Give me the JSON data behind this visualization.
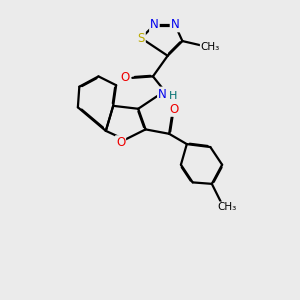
{
  "background_color": "#ebebeb",
  "atom_colors": {
    "C": "#000000",
    "N": "#0000ee",
    "O": "#ee0000",
    "S": "#bbaa00",
    "H": "#007070"
  },
  "bond_color": "#000000",
  "bond_width": 1.6,
  "figsize": [
    3.0,
    3.0
  ],
  "dpi": 100
}
